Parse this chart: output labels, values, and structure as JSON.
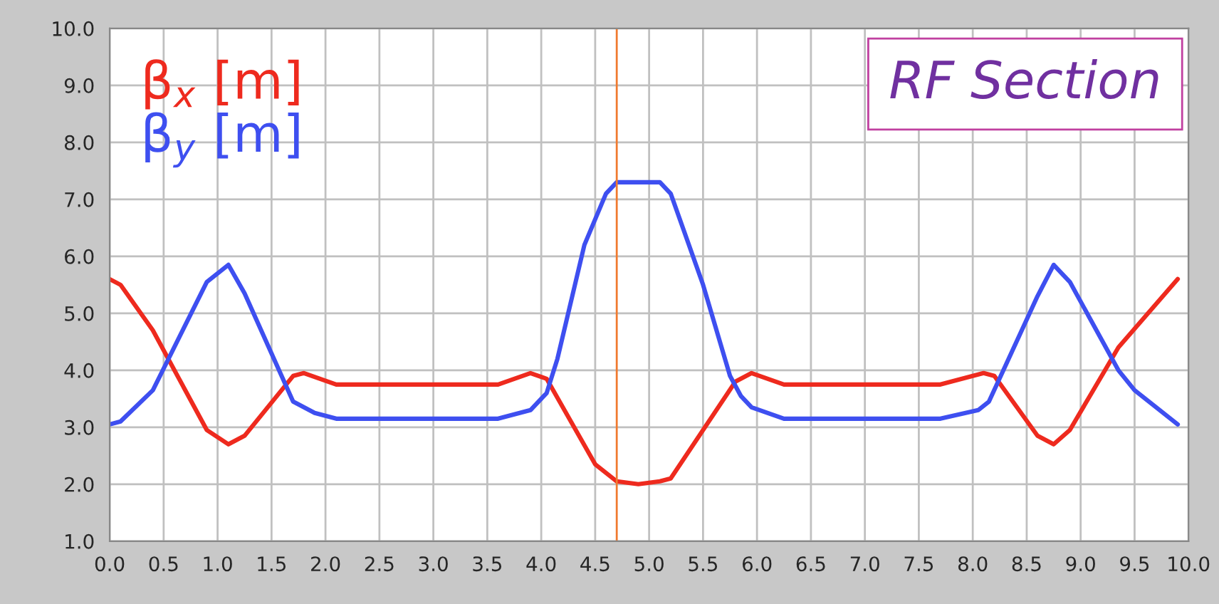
{
  "chart_data": {
    "type": "line",
    "title": "RF Section",
    "x": [
      0,
      0.1,
      0.4,
      0.9,
      1.1,
      1.25,
      1.7,
      1.8,
      2.1,
      3.6,
      3.9,
      4.05,
      4.5,
      4.7,
      4.9,
      5.1,
      5.2,
      5.8,
      5.95,
      6.25,
      7.7,
      8.0,
      8.1,
      8.2,
      8.6,
      8.75,
      8.9,
      9.35,
      9.9
    ],
    "series": [
      {
        "name": "β$_{x}$ [m]",
        "color": "#ee2a1e",
        "values": [
          5.6,
          5.5,
          4.7,
          2.95,
          2.7,
          2.85,
          3.9,
          3.95,
          3.75,
          3.75,
          3.95,
          3.85,
          2.35,
          2.05,
          2.0,
          2.05,
          2.1,
          3.8,
          3.95,
          3.75,
          3.75,
          3.9,
          3.95,
          3.9,
          2.85,
          2.7,
          2.95,
          4.4,
          5.6
        ]
      },
      {
        "name": "β$_{y}$ [m]",
        "color": "#3e4ff0",
        "x": [
          0,
          0.1,
          0.4,
          0.9,
          1.1,
          1.25,
          1.7,
          1.9,
          2.1,
          3.6,
          3.9,
          4.05,
          4.15,
          4.4,
          4.6,
          4.7,
          5.1,
          5.2,
          5.5,
          5.75,
          5.85,
          5.95,
          6.25,
          7.7,
          8.05,
          8.15,
          8.6,
          8.75,
          8.9,
          9.35,
          9.5,
          9.9
        ],
        "values": [
          3.05,
          3.1,
          3.65,
          5.55,
          5.85,
          5.35,
          3.45,
          3.25,
          3.15,
          3.15,
          3.3,
          3.6,
          4.2,
          6.2,
          7.1,
          7.3,
          7.3,
          7.1,
          5.5,
          3.9,
          3.55,
          3.35,
          3.15,
          3.15,
          3.3,
          3.45,
          5.3,
          5.85,
          5.55,
          4.0,
          3.65,
          3.05
        ]
      }
    ],
    "xlim": [
      0,
      10
    ],
    "ylim": [
      1,
      10
    ],
    "xticks": [
      {
        "value": 0,
        "label": "0.0"
      },
      {
        "value": 0.5,
        "label": "0.5"
      },
      {
        "value": 1,
        "label": "1.0"
      },
      {
        "value": 1.5,
        "label": "1.5"
      },
      {
        "value": 2,
        "label": "2.0"
      },
      {
        "value": 2.5,
        "label": "2.5"
      },
      {
        "value": 3,
        "label": "3.0"
      },
      {
        "value": 3.5,
        "label": "3.5"
      },
      {
        "value": 4,
        "label": "4.0"
      },
      {
        "value": 4.5,
        "label": "4.5"
      },
      {
        "value": 5,
        "label": "5.0"
      },
      {
        "value": 5.5,
        "label": "5.5"
      },
      {
        "value": 6,
        "label": "6.0"
      },
      {
        "value": 6.5,
        "label": "6.5"
      },
      {
        "value": 7,
        "label": "7.0"
      },
      {
        "value": 7.5,
        "label": "7.5"
      },
      {
        "value": 8,
        "label": "8.0"
      },
      {
        "value": 8.5,
        "label": "8.5"
      },
      {
        "value": 9,
        "label": "9.0"
      },
      {
        "value": 9.5,
        "label": "9.5"
      },
      {
        "value": 10,
        "label": "10.0"
      }
    ],
    "yticks": [
      {
        "value": 1,
        "label": "1.0"
      },
      {
        "value": 2,
        "label": "2.0"
      },
      {
        "value": 3,
        "label": "3.0"
      },
      {
        "value": 4,
        "label": "4.0"
      },
      {
        "value": 5,
        "label": "5.0"
      },
      {
        "value": 6,
        "label": "6.0"
      },
      {
        "value": 7,
        "label": "7.0"
      },
      {
        "value": 8,
        "label": "8.0"
      },
      {
        "value": 9,
        "label": "9.0"
      },
      {
        "value": 10,
        "label": "10.0"
      }
    ],
    "ref_lines": [
      {
        "axis": "x",
        "value": 4.7,
        "label": null,
        "color": "#f07a30"
      }
    ],
    "grid": true,
    "legend": "top left",
    "marker": "none",
    "line_style": "solid"
  }
}
